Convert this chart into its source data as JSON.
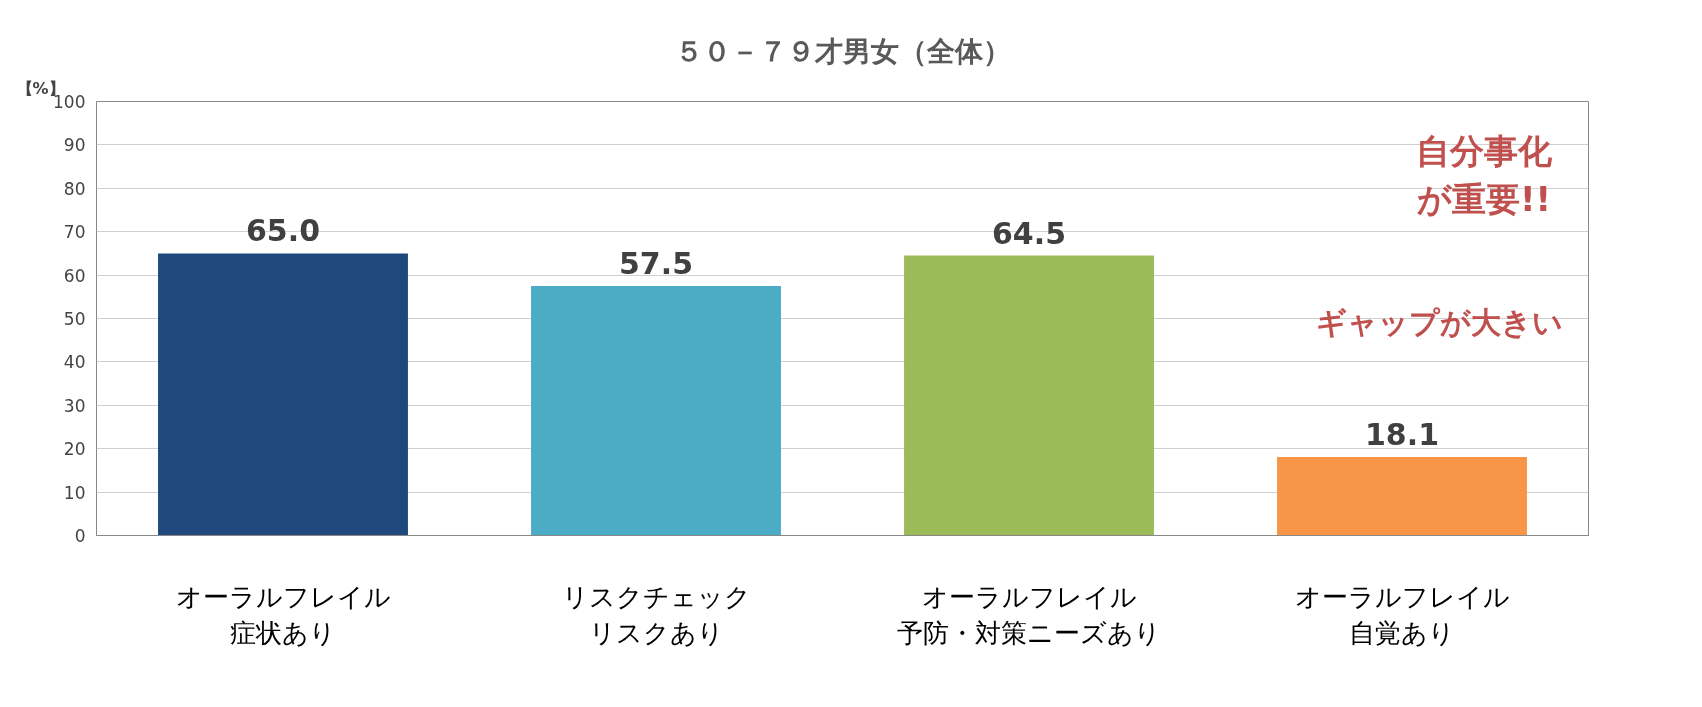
{
  "chart_data": {
    "type": "bar",
    "title": "５０－７９才男女（全体）",
    "ylabel": "【%】",
    "categories": [
      "オーラルフレイル症状あり",
      "リスクチェックリスクあり",
      "オーラルフレイル予防・対策ニーズあり",
      "オーラルフレイル自覚あり"
    ],
    "values": [
      65.0,
      57.5,
      64.5,
      18.1
    ],
    "value_labels": [
      "65.0",
      "57.5",
      "64.5",
      "18.1"
    ],
    "colors": [
      "#1f497d",
      "#4bacc6",
      "#9bbb59",
      "#f79646"
    ],
    "ylim": [
      0,
      100
    ],
    "yticks": [
      0,
      10,
      20,
      30,
      40,
      50,
      60,
      70,
      80,
      90,
      100
    ],
    "grid": "y",
    "annotations": [
      "自分事化が重要!!",
      "ギャップが大きい"
    ]
  }
}
